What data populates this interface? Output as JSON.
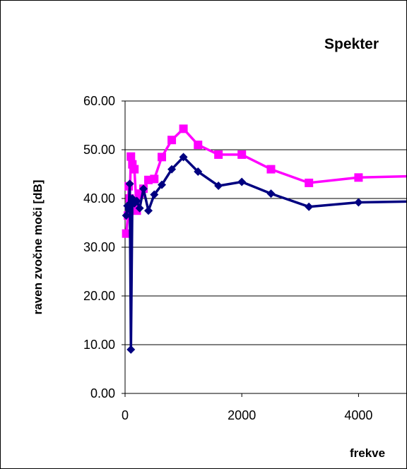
{
  "chart_data": {
    "type": "line",
    "title": "Spekter",
    "xlabel": "frekve",
    "ylabel": "raven zvočne moči [dB]",
    "xlim": [
      0,
      4800
    ],
    "ylim": [
      0,
      60
    ],
    "x_ticks": [
      "0",
      "2000",
      "4000"
    ],
    "y_ticks": [
      "0.00",
      "10.00",
      "20.00",
      "30.00",
      "40.00",
      "50.00",
      "60.00"
    ],
    "grid": "horizontal",
    "legend": "none",
    "series": [
      {
        "color": "#ff00ff",
        "marker": "square",
        "points": [
          [
            20,
            32.8
          ],
          [
            50,
            36.5
          ],
          [
            63,
            42.5
          ],
          [
            80,
            40.0
          ],
          [
            100,
            48.6
          ],
          [
            125,
            47.0
          ],
          [
            160,
            46.0
          ],
          [
            200,
            37.5
          ],
          [
            250,
            41.0
          ],
          [
            315,
            42.0
          ],
          [
            400,
            43.8
          ],
          [
            500,
            44.0
          ],
          [
            630,
            48.5
          ],
          [
            800,
            52.0
          ],
          [
            1000,
            54.3
          ],
          [
            1250,
            51.0
          ],
          [
            1600,
            49.0
          ],
          [
            2000,
            49.0
          ],
          [
            2500,
            46.0
          ],
          [
            3150,
            43.2
          ],
          [
            4000,
            44.3
          ],
          [
            5000,
            44.6
          ]
        ]
      },
      {
        "color": "#000080",
        "marker": "diamond",
        "points": [
          [
            20,
            36.5
          ],
          [
            40,
            38.5
          ],
          [
            63,
            37.8
          ],
          [
            80,
            43.0
          ],
          [
            100,
            9.0
          ],
          [
            125,
            40.0
          ],
          [
            160,
            39.0
          ],
          [
            200,
            39.5
          ],
          [
            250,
            38.0
          ],
          [
            315,
            42.0
          ],
          [
            400,
            37.5
          ],
          [
            500,
            40.8
          ],
          [
            630,
            42.8
          ],
          [
            800,
            46.0
          ],
          [
            1000,
            48.5
          ],
          [
            1250,
            45.5
          ],
          [
            1600,
            42.6
          ],
          [
            2000,
            43.4
          ],
          [
            2500,
            41.0
          ],
          [
            3150,
            38.3
          ],
          [
            4000,
            39.2
          ],
          [
            5000,
            39.4
          ]
        ]
      }
    ]
  }
}
